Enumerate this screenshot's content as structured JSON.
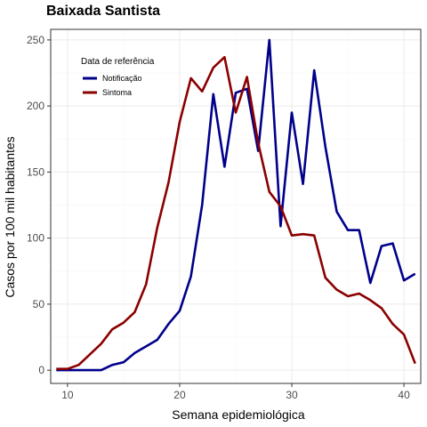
{
  "chart_data": {
    "type": "line",
    "title": "Baixada Santista",
    "xlabel": "Semana epidemiológica",
    "ylabel": "Casos por 100 mil habitantes",
    "xlim": [
      8.5,
      41.5
    ],
    "ylim": [
      -10,
      258
    ],
    "xticks": [
      10,
      20,
      30,
      40
    ],
    "yticks": [
      0,
      50,
      100,
      150,
      200,
      250
    ],
    "grid": true,
    "legend": {
      "title": "Data de referência",
      "position": "top-left"
    },
    "series": [
      {
        "name": "Notificação",
        "color": "#00008B",
        "x": [
          9,
          10,
          11,
          12,
          13,
          14,
          15,
          16,
          17,
          18,
          19,
          20,
          21,
          22,
          23,
          24,
          25,
          26,
          27,
          28,
          29,
          30,
          31,
          32,
          33,
          34,
          35,
          36,
          37,
          38,
          39,
          40,
          41
        ],
        "y": [
          0,
          0,
          0,
          0,
          0,
          4,
          6,
          13,
          18,
          23,
          35,
          45,
          71,
          125,
          209,
          154,
          210,
          213,
          166,
          250,
          109,
          195,
          141,
          227,
          169,
          120,
          106,
          106,
          66,
          94,
          96,
          68,
          73
        ]
      },
      {
        "name": "Sintoma",
        "color": "#8B0000",
        "x": [
          9,
          10,
          11,
          12,
          13,
          14,
          15,
          16,
          17,
          18,
          19,
          20,
          21,
          22,
          23,
          24,
          25,
          26,
          27,
          28,
          29,
          30,
          31,
          32,
          33,
          34,
          35,
          36,
          37,
          38,
          39,
          40,
          41
        ],
        "y": [
          1,
          1,
          4,
          12,
          20,
          31,
          36,
          44,
          65,
          108,
          142,
          188,
          221,
          211,
          229,
          237,
          195,
          222,
          172,
          135,
          124,
          102,
          103,
          102,
          70,
          61,
          56,
          58,
          53,
          47,
          35,
          27,
          5
        ]
      }
    ]
  }
}
